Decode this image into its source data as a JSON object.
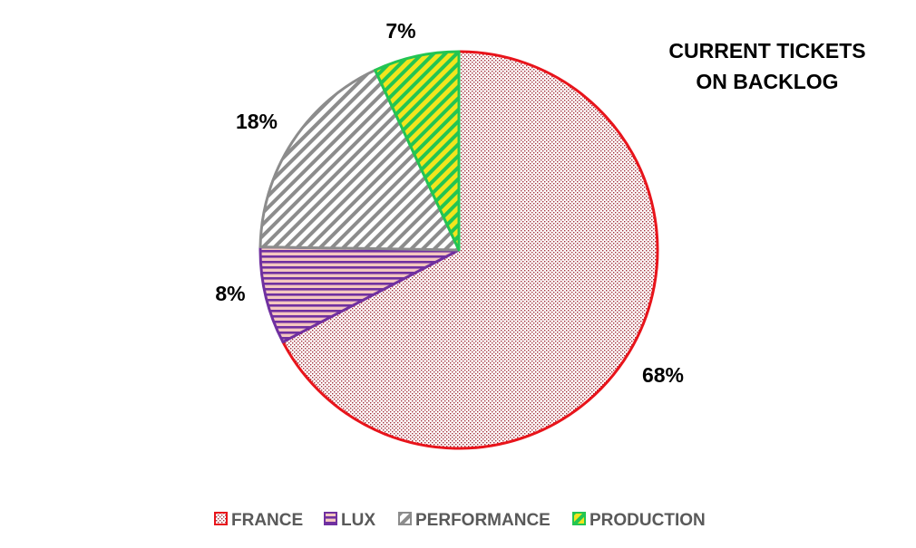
{
  "chart_data": {
    "type": "pie",
    "title": [
      "CURRENT TICKETS",
      "ON BACKLOG"
    ],
    "categories": [
      "FRANCE",
      "LUX",
      "PERFORMANCE",
      "PRODUCTION"
    ],
    "values": [
      68,
      8,
      18,
      7
    ],
    "data_labels": [
      "68%",
      "8%",
      "18%",
      "7%"
    ],
    "legend_position": "bottom",
    "colors": {
      "FRANCE": {
        "stroke": "#e8141b",
        "pattern": "dots",
        "fg": "#a12f3a"
      },
      "LUX": {
        "stroke": "#7030a0",
        "pattern": "horizontal-stripes",
        "fg": "#7030a0",
        "bg": "#f4c7c0"
      },
      "PERFORMANCE": {
        "stroke": "#8c8c8c",
        "pattern": "diagonal-stripes",
        "fg": "#8c8c8c"
      },
      "PRODUCTION": {
        "stroke": "#23c552",
        "pattern": "diagonal-stripes",
        "fg": "#23c552",
        "bg": "#f2e51d"
      }
    }
  }
}
